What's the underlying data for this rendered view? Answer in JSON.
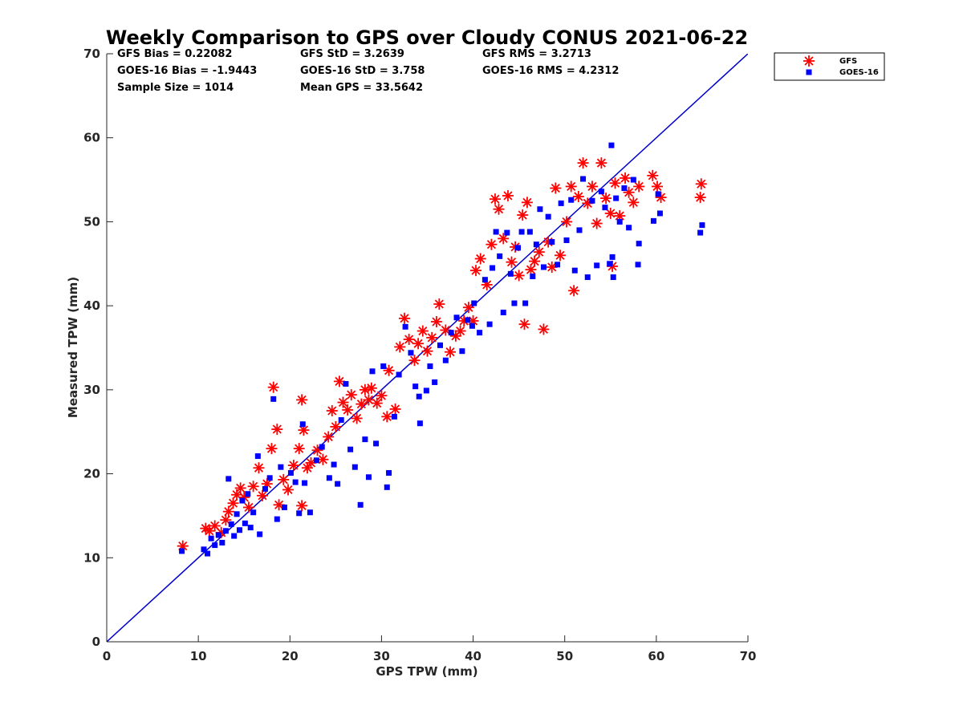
{
  "chart_data": {
    "type": "scatter",
    "title": "Weekly Comparison to GPS over Cloudy CONUS 2021-06-22",
    "xlabel": "GPS TPW (mm)",
    "ylabel": "Measured TPW (mm)",
    "xlim": [
      0,
      70
    ],
    "ylim": [
      0,
      70
    ],
    "xticks": [
      0,
      10,
      20,
      30,
      40,
      50,
      60,
      70
    ],
    "yticks": [
      0,
      10,
      20,
      30,
      40,
      50,
      60,
      70
    ],
    "grid": false,
    "legend_position": "outside-top-right",
    "stats": [
      [
        "GFS Bias = 0.22082",
        "GFS StD = 3.2639",
        "GFS RMS = 3.2713"
      ],
      [
        "GOES-16 Bias = -1.9443",
        "GOES-16 StD = 3.758",
        "GOES-16 RMS = 4.2312"
      ],
      [
        "Sample Size = 1014",
        "Mean GPS = 33.5642",
        ""
      ]
    ],
    "reference_line": {
      "x": [
        0,
        70
      ],
      "y": [
        0,
        70
      ],
      "color": "#0000cc"
    },
    "series": [
      {
        "name": "GFS",
        "marker": "asterisk",
        "color": "#ff0000",
        "points": [
          [
            8.3,
            11.4
          ],
          [
            10.8,
            13.5
          ],
          [
            11.2,
            13.2
          ],
          [
            11.8,
            13.8
          ],
          [
            12.5,
            13.0
          ],
          [
            13.0,
            14.5
          ],
          [
            13.3,
            15.5
          ],
          [
            13.8,
            16.5
          ],
          [
            14.2,
            17.5
          ],
          [
            14.6,
            18.3
          ],
          [
            15.0,
            17.2
          ],
          [
            15.5,
            16.0
          ],
          [
            16.0,
            18.5
          ],
          [
            16.6,
            20.7
          ],
          [
            17.0,
            17.4
          ],
          [
            17.5,
            18.8
          ],
          [
            18.0,
            23.0
          ],
          [
            18.2,
            30.3
          ],
          [
            18.6,
            25.3
          ],
          [
            18.8,
            16.3
          ],
          [
            19.3,
            19.3
          ],
          [
            19.8,
            18.1
          ],
          [
            20.4,
            21.0
          ],
          [
            21.0,
            23.0
          ],
          [
            21.3,
            28.8
          ],
          [
            21.5,
            25.2
          ],
          [
            21.3,
            16.2
          ],
          [
            21.9,
            20.7
          ],
          [
            22.3,
            21.3
          ],
          [
            23.0,
            22.8
          ],
          [
            23.6,
            21.7
          ],
          [
            24.2,
            24.4
          ],
          [
            24.6,
            27.5
          ],
          [
            25.0,
            25.6
          ],
          [
            25.4,
            31.0
          ],
          [
            25.8,
            28.5
          ],
          [
            26.3,
            27.6
          ],
          [
            26.7,
            29.4
          ],
          [
            27.3,
            26.6
          ],
          [
            27.8,
            28.3
          ],
          [
            28.2,
            30.0
          ],
          [
            28.6,
            28.8
          ],
          [
            28.9,
            30.2
          ],
          [
            29.5,
            28.4
          ],
          [
            30.0,
            29.3
          ],
          [
            30.6,
            26.8
          ],
          [
            30.8,
            32.3
          ],
          [
            31.5,
            27.7
          ],
          [
            32.0,
            35.1
          ],
          [
            32.5,
            38.5
          ],
          [
            33.0,
            36.0
          ],
          [
            33.6,
            33.5
          ],
          [
            34.0,
            35.5
          ],
          [
            34.5,
            37.0
          ],
          [
            35.0,
            34.6
          ],
          [
            35.5,
            36.2
          ],
          [
            36.0,
            38.1
          ],
          [
            36.3,
            40.2
          ],
          [
            37.0,
            37.1
          ],
          [
            37.5,
            34.5
          ],
          [
            38.1,
            36.4
          ],
          [
            38.6,
            37.0
          ],
          [
            39.0,
            38.2
          ],
          [
            39.5,
            39.8
          ],
          [
            40.0,
            38.2
          ],
          [
            40.3,
            44.2
          ],
          [
            40.8,
            45.6
          ],
          [
            41.5,
            42.5
          ],
          [
            42.0,
            47.3
          ],
          [
            42.4,
            52.7
          ],
          [
            42.8,
            51.5
          ],
          [
            43.3,
            48.0
          ],
          [
            43.8,
            53.1
          ],
          [
            44.2,
            45.2
          ],
          [
            44.6,
            47.0
          ],
          [
            45.0,
            43.6
          ],
          [
            45.4,
            50.8
          ],
          [
            45.9,
            52.3
          ],
          [
            45.6,
            37.8
          ],
          [
            46.3,
            44.3
          ],
          [
            46.7,
            45.3
          ],
          [
            47.2,
            46.4
          ],
          [
            47.7,
            37.2
          ],
          [
            48.2,
            47.6
          ],
          [
            48.6,
            44.6
          ],
          [
            49.0,
            54.0
          ],
          [
            49.5,
            46.0
          ],
          [
            50.2,
            50.0
          ],
          [
            50.7,
            54.2
          ],
          [
            51.0,
            41.8
          ],
          [
            51.5,
            53.0
          ],
          [
            52.0,
            57.0
          ],
          [
            52.5,
            52.2
          ],
          [
            53.0,
            54.2
          ],
          [
            53.5,
            49.8
          ],
          [
            54.0,
            57.0
          ],
          [
            54.5,
            52.8
          ],
          [
            55.0,
            51.0
          ],
          [
            55.5,
            54.6
          ],
          [
            56.0,
            50.7
          ],
          [
            56.6,
            55.2
          ],
          [
            57.0,
            53.5
          ],
          [
            57.5,
            52.3
          ],
          [
            58.1,
            54.2
          ],
          [
            59.6,
            55.5
          ],
          [
            60.1,
            54.2
          ],
          [
            60.5,
            52.9
          ],
          [
            64.9,
            54.5
          ],
          [
            64.8,
            52.9
          ],
          [
            55.2,
            44.7
          ]
        ]
      },
      {
        "name": "GOES-16",
        "marker": "square",
        "color": "#0000ff",
        "points": [
          [
            8.2,
            10.8
          ],
          [
            10.6,
            11.0
          ],
          [
            11.0,
            10.5
          ],
          [
            11.4,
            12.3
          ],
          [
            11.8,
            11.5
          ],
          [
            12.2,
            12.7
          ],
          [
            12.6,
            11.8
          ],
          [
            13.0,
            13.2
          ],
          [
            13.3,
            19.4
          ],
          [
            13.6,
            14.0
          ],
          [
            13.9,
            12.6
          ],
          [
            14.2,
            15.2
          ],
          [
            14.5,
            13.3
          ],
          [
            14.8,
            16.8
          ],
          [
            15.1,
            14.1
          ],
          [
            15.4,
            17.6
          ],
          [
            15.7,
            13.6
          ],
          [
            16.0,
            15.4
          ],
          [
            16.5,
            22.1
          ],
          [
            16.7,
            12.8
          ],
          [
            17.3,
            18.2
          ],
          [
            17.8,
            19.5
          ],
          [
            18.2,
            28.9
          ],
          [
            18.6,
            14.6
          ],
          [
            19.0,
            20.8
          ],
          [
            19.4,
            16.0
          ],
          [
            20.1,
            20.1
          ],
          [
            20.6,
            19.0
          ],
          [
            21.0,
            15.3
          ],
          [
            21.4,
            25.9
          ],
          [
            21.6,
            18.9
          ],
          [
            22.2,
            15.4
          ],
          [
            22.9,
            21.6
          ],
          [
            23.5,
            23.2
          ],
          [
            24.3,
            19.5
          ],
          [
            24.8,
            21.1
          ],
          [
            25.2,
            18.8
          ],
          [
            25.6,
            26.4
          ],
          [
            26.1,
            30.7
          ],
          [
            26.6,
            22.9
          ],
          [
            27.1,
            20.8
          ],
          [
            27.7,
            16.3
          ],
          [
            28.2,
            24.1
          ],
          [
            28.6,
            19.6
          ],
          [
            29.0,
            32.2
          ],
          [
            29.4,
            23.6
          ],
          [
            30.2,
            32.8
          ],
          [
            30.6,
            18.4
          ],
          [
            30.8,
            20.1
          ],
          [
            31.4,
            26.8
          ],
          [
            31.9,
            31.8
          ],
          [
            32.6,
            37.5
          ],
          [
            33.2,
            34.4
          ],
          [
            33.7,
            30.4
          ],
          [
            34.1,
            29.2
          ],
          [
            34.2,
            26.0
          ],
          [
            34.9,
            29.9
          ],
          [
            35.3,
            32.8
          ],
          [
            35.8,
            30.9
          ],
          [
            36.4,
            35.3
          ],
          [
            37.0,
            33.5
          ],
          [
            37.6,
            36.8
          ],
          [
            38.2,
            38.6
          ],
          [
            38.8,
            34.6
          ],
          [
            39.4,
            38.3
          ],
          [
            39.9,
            37.6
          ],
          [
            40.1,
            40.3
          ],
          [
            40.7,
            36.8
          ],
          [
            41.3,
            43.1
          ],
          [
            41.8,
            37.8
          ],
          [
            42.1,
            44.5
          ],
          [
            42.5,
            48.8
          ],
          [
            42.9,
            45.9
          ],
          [
            43.3,
            39.2
          ],
          [
            43.7,
            48.7
          ],
          [
            44.1,
            43.8
          ],
          [
            44.5,
            40.3
          ],
          [
            44.9,
            46.9
          ],
          [
            45.3,
            48.8
          ],
          [
            45.7,
            40.3
          ],
          [
            46.2,
            48.8
          ],
          [
            46.5,
            43.5
          ],
          [
            46.9,
            47.3
          ],
          [
            47.3,
            51.5
          ],
          [
            47.7,
            44.6
          ],
          [
            48.2,
            50.6
          ],
          [
            48.6,
            47.6
          ],
          [
            49.2,
            44.9
          ],
          [
            49.6,
            52.2
          ],
          [
            50.2,
            47.8
          ],
          [
            50.7,
            52.6
          ],
          [
            51.1,
            44.2
          ],
          [
            51.6,
            49.0
          ],
          [
            52.0,
            55.1
          ],
          [
            52.5,
            43.4
          ],
          [
            53.0,
            52.5
          ],
          [
            53.5,
            44.8
          ],
          [
            54.0,
            53.6
          ],
          [
            54.4,
            51.7
          ],
          [
            54.9,
            45.0
          ],
          [
            55.1,
            59.1
          ],
          [
            55.3,
            43.4
          ],
          [
            55.6,
            52.8
          ],
          [
            56.0,
            50.0
          ],
          [
            56.5,
            54.0
          ],
          [
            57.0,
            49.3
          ],
          [
            57.5,
            55.0
          ],
          [
            58.0,
            44.9
          ],
          [
            58.1,
            47.4
          ],
          [
            59.7,
            50.1
          ],
          [
            60.4,
            51.0
          ],
          [
            60.2,
            53.3
          ],
          [
            65.0,
            49.6
          ],
          [
            64.8,
            48.7
          ],
          [
            55.2,
            45.8
          ]
        ]
      }
    ]
  }
}
